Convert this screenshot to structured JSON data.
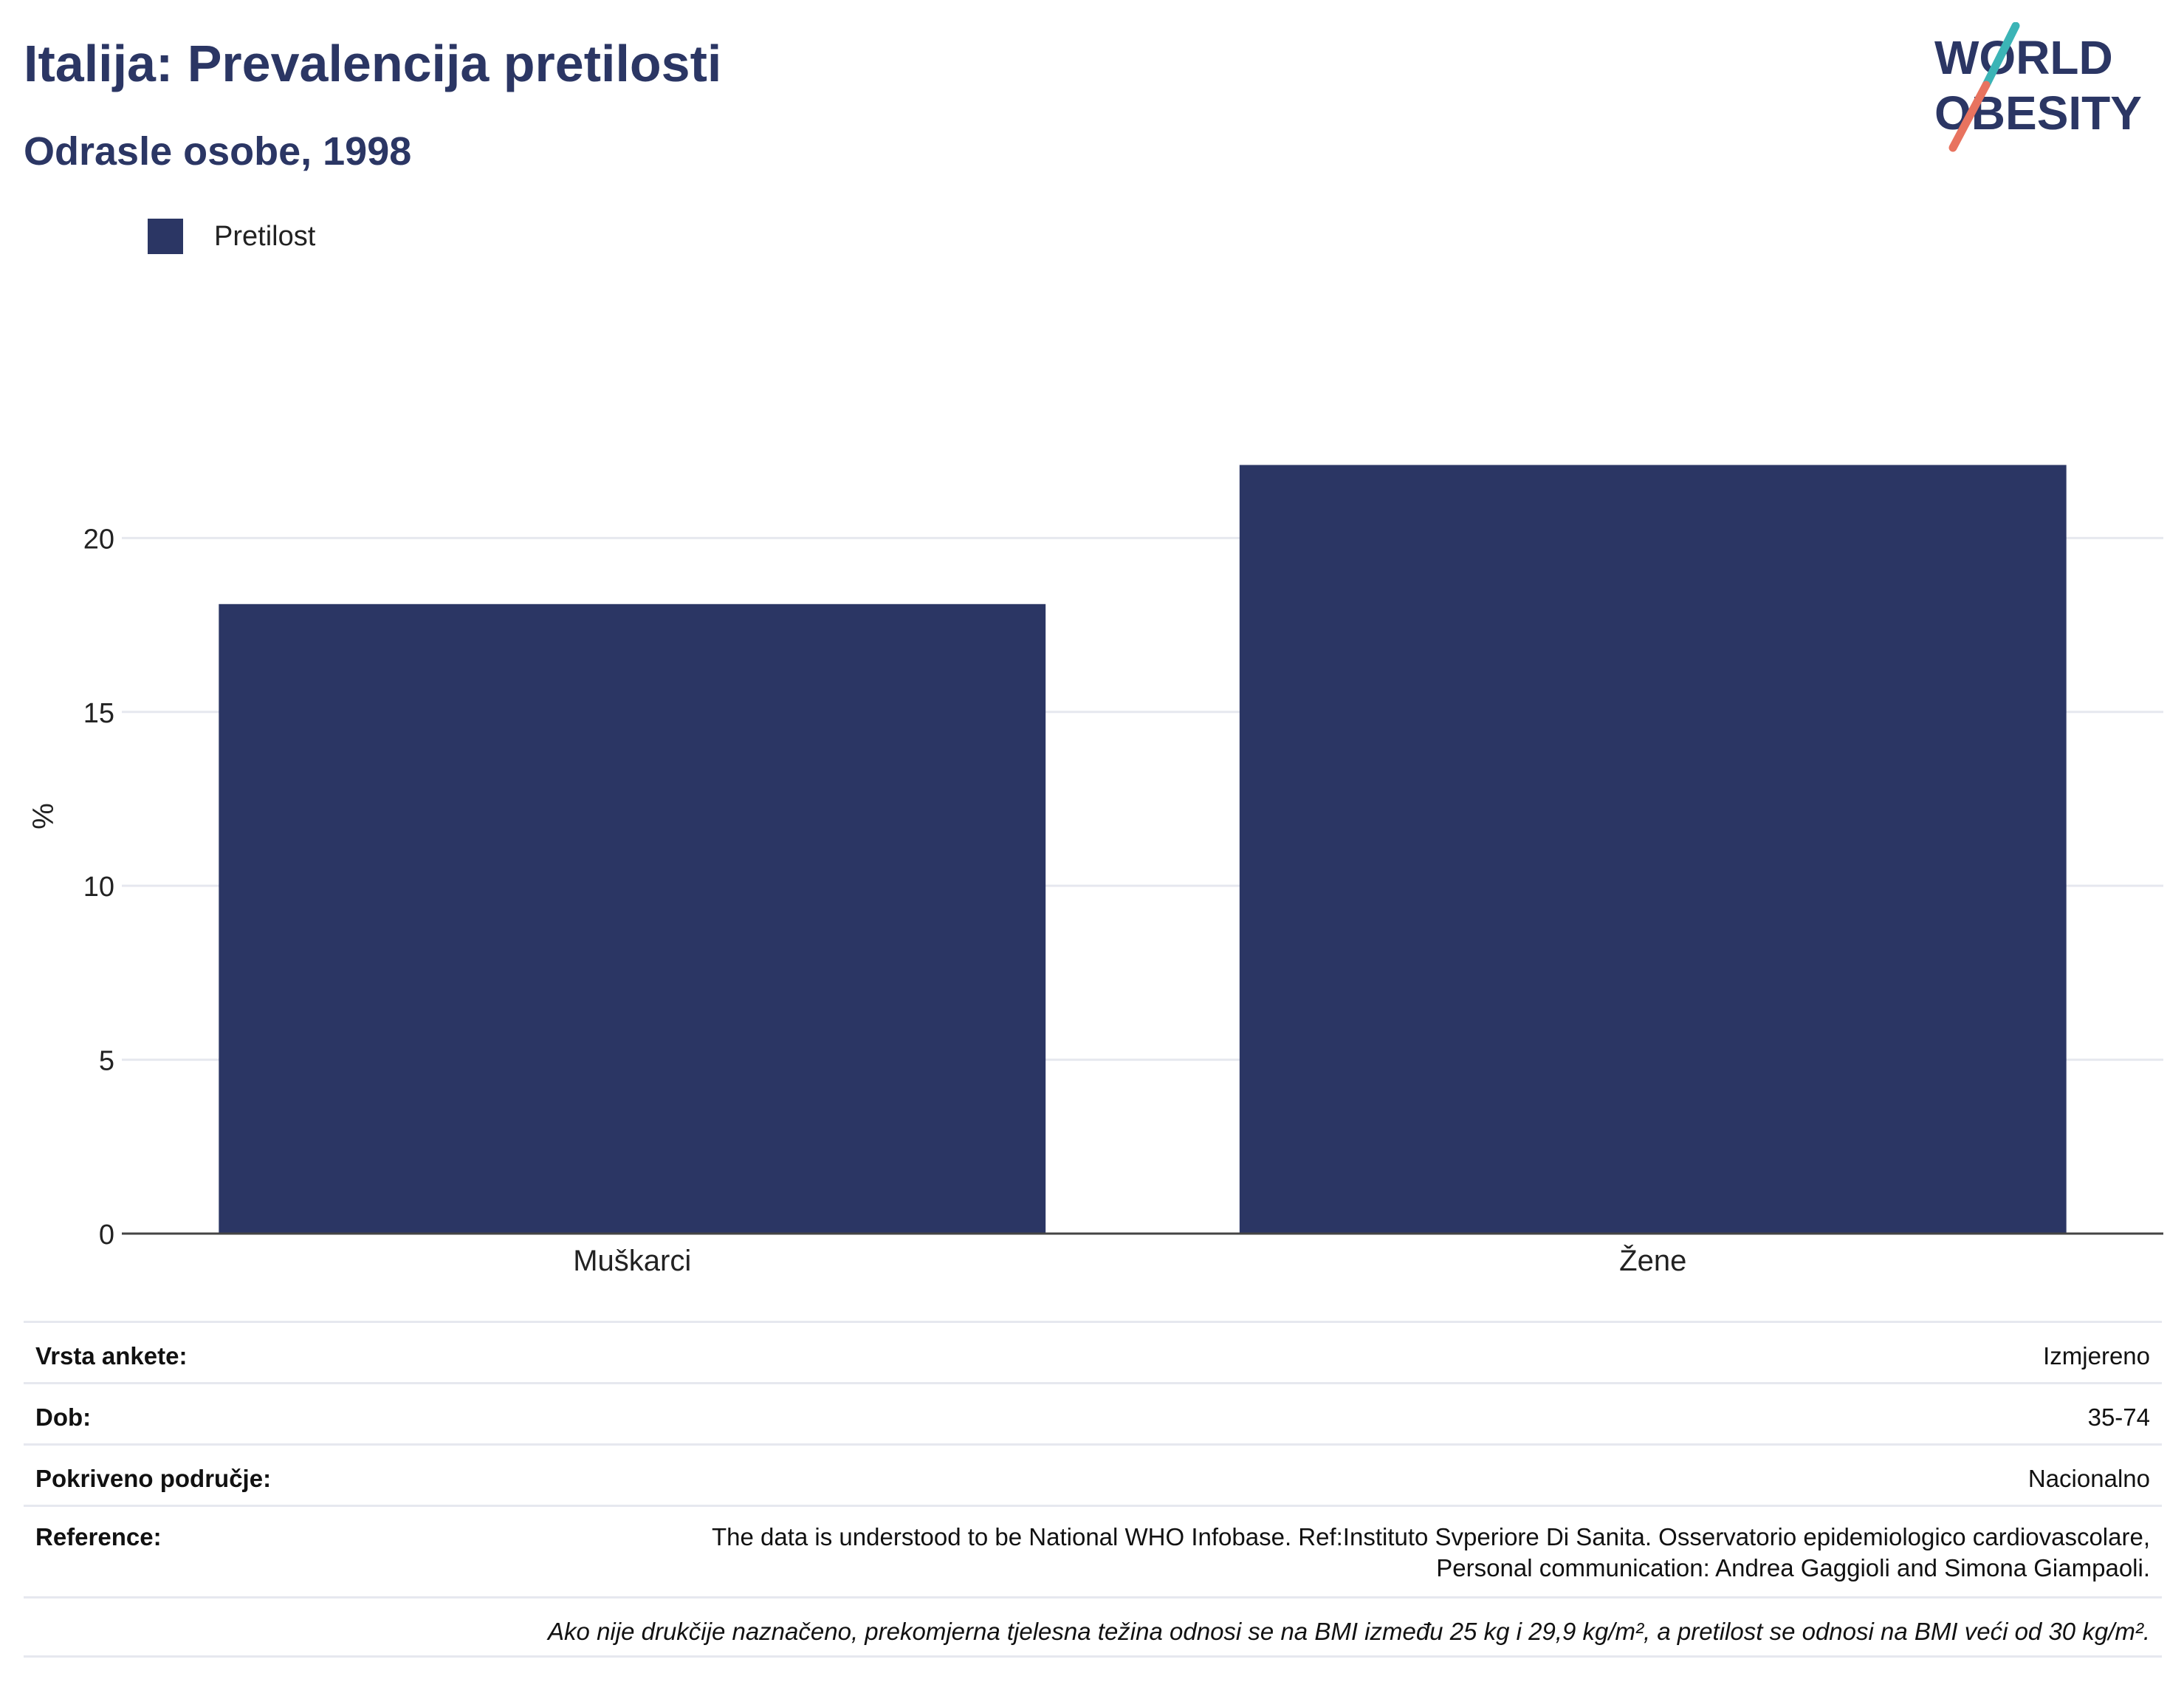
{
  "header": {
    "title": "Italija: Prevalencija pretilosti",
    "subtitle": "Odrasle osobe, 1998"
  },
  "logo": {
    "line1": "WORLD",
    "line2": "OBESITY"
  },
  "colors": {
    "bar": "#2b3664",
    "accent_teal": "#3bb4b6",
    "accent_coral": "#e8735f",
    "grid": "#e6e8ef"
  },
  "chart_data": {
    "type": "bar",
    "categories": [
      "Muškarci",
      "Žene"
    ],
    "series": [
      {
        "name": "Pretilost",
        "values": [
          18.1,
          22.1
        ]
      }
    ],
    "ylabel": "%",
    "xlabel": "",
    "ylim": [
      0,
      24
    ],
    "yticks": [
      0,
      5,
      10,
      15,
      20
    ],
    "grid": true,
    "legend": "top-left"
  },
  "info": {
    "survey_label": "Vrsta ankete:",
    "survey_value": "Izmjereno",
    "age_label": "Dob:",
    "age_value": "35-74",
    "area_label": "Pokriveno područje:",
    "area_value": "Nacionalno",
    "ref_label": "Reference:",
    "ref_value_1": "The data is understood to be National WHO Infobase. Ref:Instituto Svperiore Di Sanita. Osservatorio epidemiologico cardiovascolare,",
    "ref_value_2": "Personal communication: Andrea Gaggioli and Simona Giampaoli.",
    "note": "Ako nije drukčije naznačeno, prekomjerna tjelesna težina odnosi se na BMI između 25 kg i 29,9 kg/m², a pretilost se odnosi na BMI veći od 30 kg/m²."
  }
}
